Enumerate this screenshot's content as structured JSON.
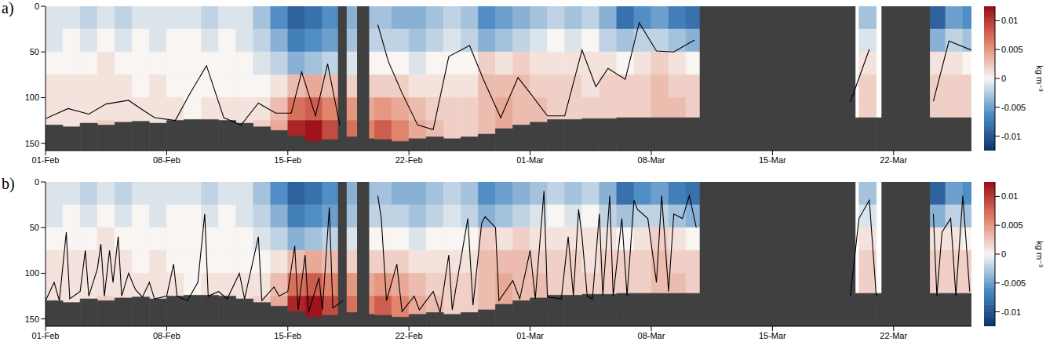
{
  "chart_data": {
    "type": "heatmap",
    "xlim": [
      0,
      53.5
    ],
    "xticks": [
      {
        "value": 0,
        "label": "01-Feb"
      },
      {
        "value": 7,
        "label": "08-Feb"
      },
      {
        "value": 14,
        "label": "15-Feb"
      },
      {
        "value": 21,
        "label": "22-Feb"
      },
      {
        "value": 28,
        "label": "01-Mar"
      },
      {
        "value": 35,
        "label": "08-Mar"
      },
      {
        "value": 42,
        "label": "15-Mar"
      },
      {
        "value": 49,
        "label": "22-Mar"
      }
    ],
    "ylim": [
      0,
      158
    ],
    "yticks": [
      0,
      50,
      100,
      150
    ],
    "colorbar": {
      "label": "kg m⁻³",
      "range": [
        -0.0125,
        0.0125
      ],
      "ticks": [
        -0.01,
        -0.005,
        0,
        0.005,
        0.01
      ]
    },
    "cells": {
      "x": [
        0,
        1,
        2,
        3,
        4,
        5,
        6,
        7,
        8,
        9,
        10,
        11,
        12,
        13,
        14,
        15,
        16,
        17,
        18,
        19,
        20,
        21,
        22,
        23,
        24,
        25,
        26,
        27,
        28,
        29,
        30,
        31,
        32,
        33,
        34,
        35,
        36,
        37,
        38,
        39,
        40,
        41,
        42,
        43,
        44,
        45,
        46,
        47,
        48,
        49,
        50,
        51,
        52,
        53
      ],
      "depth_edges": [
        0,
        25,
        50,
        75,
        100,
        125,
        150
      ],
      "values": [
        [
          -0.001,
          -0.001,
          0,
          0.001,
          0.001,
          0.001
        ],
        [
          -0.001,
          0,
          0,
          0.001,
          0.001,
          0.001
        ],
        [
          -0.002,
          -0.001,
          0,
          0.001,
          0.001,
          0.001
        ],
        [
          -0.001,
          0,
          0.001,
          0.001,
          0.001,
          0.002
        ],
        [
          -0.002,
          -0.001,
          0,
          0.001,
          0.001,
          0.001
        ],
        [
          -0.001,
          0,
          0,
          0,
          0.001,
          0.001
        ],
        [
          -0.001,
          -0.001,
          0,
          0.001,
          0.001,
          0.001
        ],
        [
          -0.001,
          0,
          0,
          0,
          0.001,
          0.001
        ],
        [
          -0.001,
          0,
          0,
          0,
          0,
          0.001
        ],
        [
          -0.002,
          -0.001,
          0,
          0,
          0.001,
          0.001
        ],
        [
          -0.001,
          0,
          0,
          0,
          0.001,
          0.001
        ],
        [
          -0.001,
          -0.001,
          0,
          0,
          0.001,
          0.001
        ],
        [
          -0.003,
          -0.002,
          -0.001,
          0,
          0.001,
          0.002
        ],
        [
          -0.006,
          -0.004,
          -0.002,
          0.001,
          0.003,
          0.004
        ],
        [
          -0.009,
          -0.007,
          -0.004,
          0.003,
          0.007,
          0.011
        ],
        [
          -0.008,
          -0.006,
          -0.003,
          0.004,
          0.008,
          0.012
        ],
        [
          -0.006,
          -0.005,
          -0.002,
          0.003,
          0.006,
          0.009
        ],
        [
          -0.004,
          -0.003,
          -0.001,
          0.002,
          0.005,
          0.007
        ],
        [
          -0.003,
          -0.002,
          0,
          0.002,
          0.004,
          0.006
        ],
        [
          -0.003,
          -0.002,
          0,
          0.002,
          0.005,
          0.008
        ],
        [
          -0.004,
          -0.002,
          0,
          0.002,
          0.004,
          0.006
        ],
        [
          -0.004,
          -0.003,
          -0.001,
          0.001,
          0.003,
          0.004
        ],
        [
          -0.003,
          -0.002,
          0,
          0.001,
          0.002,
          0.003
        ],
        [
          -0.002,
          -0.001,
          0,
          0.001,
          0.002,
          0.002
        ],
        [
          -0.003,
          -0.002,
          0,
          0.001,
          0.002,
          0.002
        ],
        [
          -0.006,
          -0.004,
          0.002,
          0.003,
          0.003,
          0.003
        ],
        [
          -0.005,
          -0.003,
          0.001,
          0.003,
          0.004,
          0.004
        ],
        [
          -0.004,
          -0.002,
          0.002,
          0.003,
          0.003,
          0.003
        ],
        [
          -0.003,
          -0.001,
          0.001,
          0.002,
          0.003,
          0.003
        ],
        [
          -0.002,
          0,
          0.001,
          0.002,
          0.002,
          0.002
        ],
        [
          -0.003,
          -0.001,
          0.001,
          0.002,
          0.002,
          0.002
        ],
        [
          -0.002,
          0,
          0.001,
          0.001,
          0.002,
          0.002
        ],
        [
          -0.004,
          -0.002,
          0.001,
          0.002,
          0.002,
          0.002
        ],
        [
          -0.008,
          -0.003,
          0,
          0.002,
          0.002,
          0.002
        ],
        [
          -0.006,
          -0.002,
          0.001,
          0.002,
          0.002,
          0.002
        ],
        [
          -0.005,
          -0.002,
          0.002,
          0.003,
          0.003,
          0.003
        ],
        [
          -0.007,
          -0.003,
          0.001,
          0.002,
          0.003,
          0.003
        ],
        [
          -0.008,
          -0.004,
          0,
          0.002,
          0.002,
          0.002
        ],
        null,
        null,
        null,
        null,
        null,
        null,
        null,
        null,
        null,
        [
          -0.003,
          -0.001,
          0.001,
          0.002,
          0.002,
          0.002
        ],
        null,
        null,
        null,
        [
          -0.009,
          -0.004,
          0.001,
          0.002,
          0.002,
          0.002
        ],
        [
          -0.005,
          -0.002,
          0.001,
          0.002,
          0.002,
          0.002
        ],
        [
          -0.006,
          -0.003,
          0,
          0.002,
          0.002,
          0.002
        ]
      ]
    },
    "seabed": {
      "x": [
        0,
        1,
        2,
        3,
        4,
        5,
        6,
        7,
        8,
        9,
        10,
        11,
        12,
        13,
        14,
        15,
        16,
        17,
        18,
        19,
        20,
        21,
        22,
        23,
        24,
        25,
        26,
        27,
        28,
        29,
        30,
        31,
        32,
        33,
        34,
        35,
        36,
        37,
        38,
        39,
        40,
        41,
        42,
        43,
        44,
        45,
        46,
        47,
        48,
        49,
        50,
        51,
        52,
        53
      ],
      "depth": [
        130,
        132,
        128,
        130,
        127,
        126,
        128,
        125,
        124,
        124,
        125,
        128,
        132,
        136,
        142,
        148,
        146,
        143,
        145,
        146,
        148,
        145,
        143,
        145,
        143,
        140,
        134,
        130,
        127,
        124,
        124,
        123,
        123,
        122,
        122,
        122,
        122,
        122,
        122,
        122,
        122,
        122,
        122,
        122,
        122,
        122,
        122,
        122,
        122,
        122,
        122,
        122,
        122,
        122
      ]
    },
    "gaps": [
      [
        16.9,
        17.4
      ],
      [
        18.0,
        18.7
      ],
      [
        37.8,
        46.8
      ],
      [
        48.3,
        51.1
      ]
    ],
    "panels": [
      {
        "label": "a)",
        "series": [
          {
            "color": "#000000",
            "x": [
              0,
              1.3,
              2.5,
              3.5,
              4.8,
              5.5,
              6.3,
              7.5,
              8.3,
              9.3,
              10.3,
              11.3,
              12.3,
              13.3,
              14.2,
              14.8,
              15.6,
              16.3,
              17,
              17.5,
              19.2,
              19.8,
              20.6,
              21.5,
              22.4,
              23.3,
              24.5,
              25.3,
              26.3,
              27.3,
              28,
              29,
              30,
              31,
              31.8,
              32.5,
              33.5,
              34.3,
              35.3,
              36.3,
              37.5,
              38,
              46.5,
              47.6,
              48,
              51.3,
              52.2,
              53.5
            ],
            "values": [
              123,
              112,
              118,
              107,
              103,
              112,
              122,
              125,
              97,
              65,
              122,
              130,
              106,
              117,
              117,
              72,
              120,
              63,
              130,
              null,
              20,
              60,
              95,
              130,
              135,
              55,
              43,
              80,
              122,
              78,
              95,
              120,
              120,
              48,
              88,
              68,
              80,
              18,
              49,
              50,
              37,
              null,
              105,
              47,
              null,
              104,
              38,
              48
            ]
          }
        ]
      },
      {
        "label": "b)",
        "series": [
          {
            "color": "#000000",
            "x": [
              0,
              0.5,
              0.8,
              1.2,
              1.4,
              2,
              2.3,
              2.5,
              3,
              3.2,
              3.4,
              3.7,
              3.9,
              4.2,
              4.4,
              4.8,
              5.2,
              5.6,
              6,
              6.3,
              7,
              7.4,
              7.6,
              8.2,
              8.8,
              9.2,
              9.4,
              10,
              10.5,
              11.2,
              11.5,
              12.3,
              12.5,
              13.2,
              13.5,
              14,
              14.4,
              14.6,
              15,
              15.2,
              15.8,
              16,
              16.4,
              16.6,
              17.2,
              17.5,
              19.2,
              19.4,
              19.7,
              20.3,
              20.6,
              21.3,
              21.6,
              22.4,
              22.8,
              23.3,
              23.5,
              24.4,
              24.7,
              25.2,
              25.4,
              26,
              26.2,
              27,
              27.4,
              28,
              28.3,
              28.8,
              29,
              29.8,
              30.2,
              30.5,
              30.8,
              31,
              31.3,
              31.6,
              32,
              32.2,
              32.6,
              32.8,
              33.3,
              33.6,
              34,
              34.2,
              34.8,
              35.3,
              35.6,
              36,
              36.3,
              36.8,
              37.2,
              37.6,
              38,
              46.5,
              47,
              47.6,
              48,
              48.3,
              51.3,
              51.5,
              51.8,
              52.3,
              52.6,
              53,
              53.4
            ],
            "values": [
              130,
              110,
              130,
              55,
              128,
              120,
              75,
              125,
              95,
              68,
              125,
              75,
              110,
              60,
              125,
              100,
              118,
              126,
              110,
              128,
              125,
              90,
              125,
              130,
              110,
              35,
              125,
              120,
              128,
              100,
              128,
              60,
              130,
              115,
              125,
              120,
              70,
              140,
              80,
              143,
              105,
              140,
              28,
              138,
              130,
              null,
              15,
              40,
              130,
              90,
              142,
              125,
              140,
              120,
              143,
              80,
              140,
              40,
              135,
              45,
              38,
              50,
              130,
              108,
              128,
              75,
              128,
              10,
              126,
              128,
              60,
              125,
              30,
              60,
              125,
              128,
              35,
              125,
              15,
              125,
              40,
              125,
              20,
              30,
              40,
              110,
              15,
              120,
              35,
              40,
              15,
              50,
              null,
              125,
              40,
              20,
              125,
              null,
              35,
              125,
              55,
              40,
              125,
              15,
              120
            ]
          }
        ]
      }
    ]
  }
}
